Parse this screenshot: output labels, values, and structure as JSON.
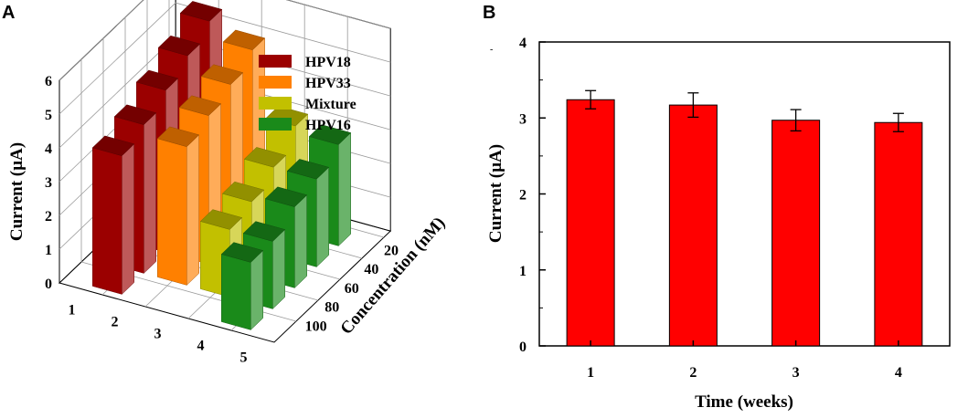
{
  "panel_a": {
    "letter": "A"
  },
  "panel_b": {
    "letter": "B"
  },
  "chart_data": [
    {
      "type": "bar",
      "subtype": "3d-bar",
      "title": "",
      "zlabel": "Current (µA)",
      "xlabel": "",
      "ylabel": "Concentration (nM)",
      "z_ticks": [
        "0",
        "1",
        "2",
        "3",
        "4",
        "5",
        "6"
      ],
      "x_ticks": [
        "1",
        "2",
        "3",
        "4",
        "5"
      ],
      "y_ticks": [
        "20",
        "40",
        "60",
        "80",
        "100"
      ],
      "zlim": [
        0,
        6
      ],
      "legend": [
        {
          "name": "HPV18",
          "color": "#9b0000"
        },
        {
          "name": "HPV33",
          "color": "#ff8000"
        },
        {
          "name": "Mixture",
          "color": "#c2c000"
        },
        {
          "name": "HPV16",
          "color": "#1a8a1a"
        }
      ],
      "series": [
        {
          "name": "HPV18",
          "color": "#9b0000",
          "points": [
            {
              "concentration": 20,
              "value": 5.6
            },
            {
              "concentration": 40,
              "value": 5.2
            },
            {
              "concentration": 60,
              "value": 4.8
            },
            {
              "concentration": 80,
              "value": 4.4
            },
            {
              "concentration": 100,
              "value": 4.1
            }
          ]
        },
        {
          "name": "HPV33",
          "color": "#ff8000",
          "points": [
            {
              "concentration": 20,
              "value": 5.1
            },
            {
              "concentration": 40,
              "value": 4.7
            },
            {
              "concentration": 60,
              "value": 4.4
            },
            {
              "concentration": 80,
              "value": 4.1
            }
          ]
        },
        {
          "name": "Mixture",
          "color": "#c2c000",
          "points": [
            {
              "concentration": 20,
              "value": 3.2
            },
            {
              "concentration": 40,
              "value": 2.6
            },
            {
              "concentration": 60,
              "value": 2.2
            },
            {
              "concentration": 80,
              "value": 2.0
            }
          ]
        },
        {
          "name": "HPV16",
          "color": "#1a8a1a",
          "points": [
            {
              "concentration": 20,
              "value": 3.0
            },
            {
              "concentration": 40,
              "value": 2.6
            },
            {
              "concentration": 60,
              "value": 2.4
            },
            {
              "concentration": 80,
              "value": 2.0
            },
            {
              "concentration": 100,
              "value": 2.0
            }
          ]
        }
      ]
    },
    {
      "type": "bar",
      "title": "",
      "xlabel": "Time (weeks)",
      "ylabel": "Current (µA)",
      "categories": [
        "1",
        "2",
        "3",
        "4"
      ],
      "values": [
        3.24,
        3.17,
        2.97,
        2.94
      ],
      "errors": [
        0.12,
        0.16,
        0.14,
        0.12
      ],
      "ylim": [
        0,
        4
      ],
      "y_ticks": [
        "0",
        "1",
        "2",
        "3",
        "4"
      ],
      "bar_color": "#ff0000"
    }
  ]
}
